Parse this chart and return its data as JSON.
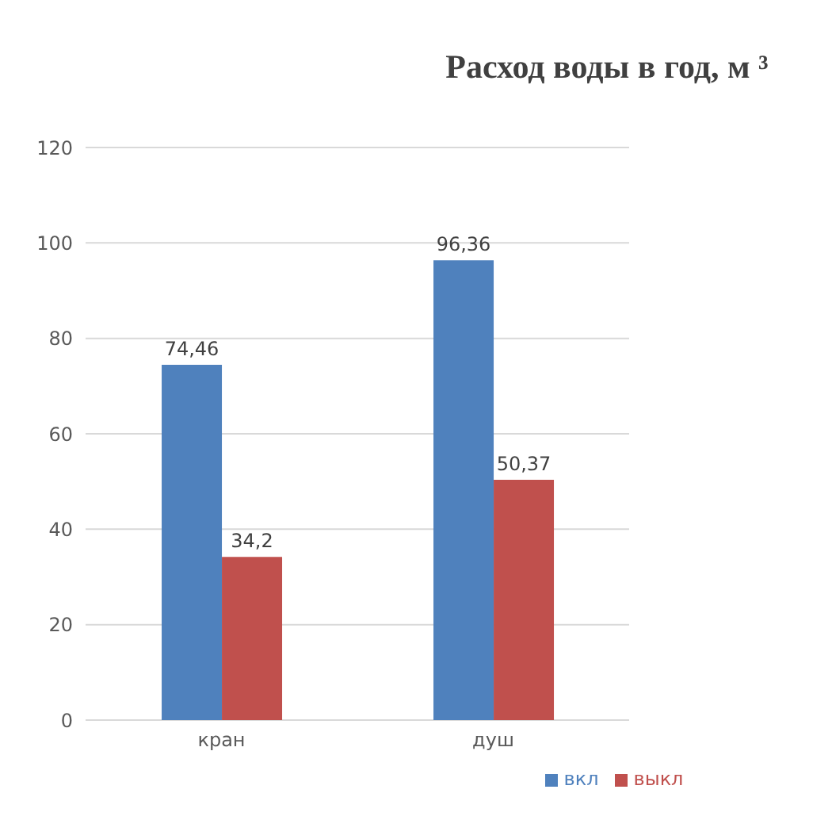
{
  "chart_data": {
    "type": "bar",
    "title": "Расход воды в год, м ³",
    "categories": [
      "кран",
      "душ"
    ],
    "series": [
      {
        "name": "вкл",
        "color": "#4f81bd",
        "values": [
          74.46,
          96.36
        ],
        "value_labels": [
          "74,46",
          "96,36"
        ]
      },
      {
        "name": "выкл",
        "color": "#c0504d",
        "values": [
          34.2,
          50.37
        ],
        "value_labels": [
          "34,2",
          "50,37"
        ]
      }
    ],
    "ylim": [
      0,
      120
    ],
    "yticks": [
      0,
      20,
      40,
      60,
      80,
      100,
      120
    ],
    "grid": "y",
    "legend": "bottom"
  }
}
